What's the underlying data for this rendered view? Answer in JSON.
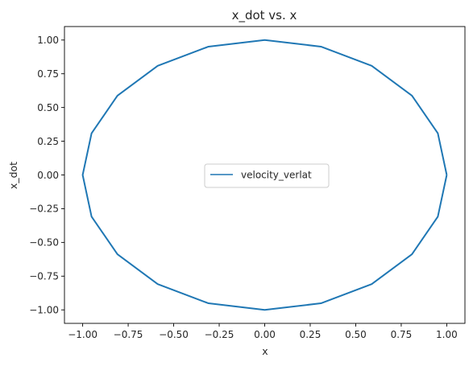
{
  "chart_data": {
    "type": "line",
    "title": "x_dot vs. x",
    "xlabel": "x",
    "ylabel": "x_dot",
    "xlim": [
      -1.1,
      1.1
    ],
    "ylim": [
      -1.1,
      1.1
    ],
    "xticks": [
      -1.0,
      -0.75,
      -0.5,
      -0.25,
      0.0,
      0.25,
      0.5,
      0.75,
      1.0
    ],
    "xtick_labels": [
      "−1.00",
      "−0.75",
      "−0.50",
      "−0.25",
      "0.00",
      "0.25",
      "0.50",
      "0.75",
      "1.00"
    ],
    "yticks": [
      -1.0,
      -0.75,
      -0.5,
      -0.25,
      0.0,
      0.25,
      0.5,
      0.75,
      1.0
    ],
    "ytick_labels": [
      "−1.00",
      "−0.75",
      "−0.50",
      "−0.25",
      "0.00",
      "0.25",
      "0.50",
      "0.75",
      "1.00"
    ],
    "grid": false,
    "legend_position": "center",
    "series": [
      {
        "name": "velocity_verlat",
        "color": "#1f77b4",
        "x": [
          1.0,
          0.9511,
          0.809,
          0.5878,
          0.309,
          0.0,
          -0.309,
          -0.5878,
          -0.809,
          -0.9511,
          -1.0,
          -0.9511,
          -0.809,
          -0.5878,
          -0.309,
          0.0,
          0.309,
          0.5878,
          0.809,
          0.9511,
          1.0
        ],
        "y": [
          0.0,
          0.309,
          0.5878,
          0.809,
          0.9511,
          1.0,
          0.9511,
          0.809,
          0.5878,
          0.309,
          0.0,
          -0.309,
          -0.5878,
          -0.809,
          -0.9511,
          -1.0,
          -0.9511,
          -0.809,
          -0.5878,
          -0.309,
          0.0
        ]
      }
    ]
  }
}
